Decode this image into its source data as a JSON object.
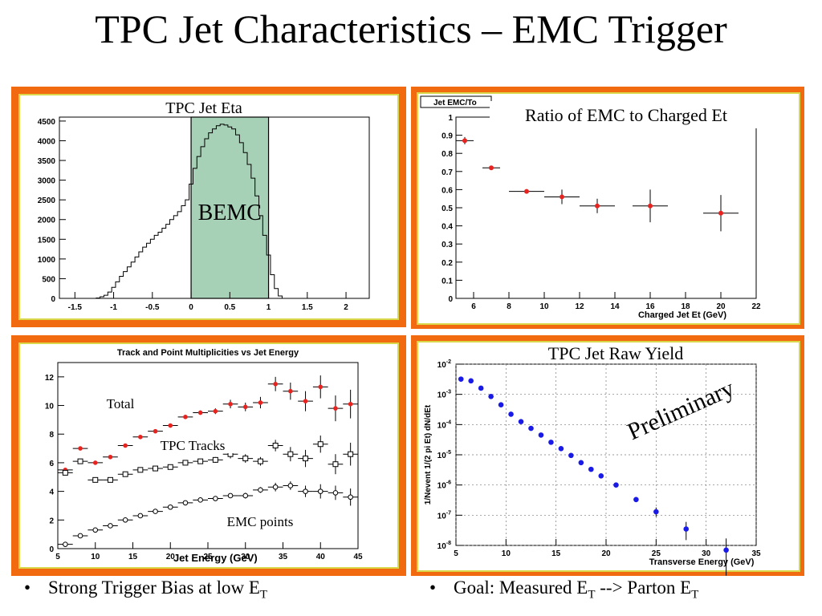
{
  "title": "TPC Jet Characteristics – EMC Trigger",
  "colors": {
    "frame": "#f26a0f",
    "bemc_band": "#a7d1b6",
    "red_points": "#e8231f",
    "blue_points": "#1a1ae6",
    "inner_border": "#d8d84a"
  },
  "bullets": {
    "left": {
      "text": "Strong Trigger Bias at low E",
      "sub": "T"
    },
    "right": {
      "text": "Goal: Measured E",
      "sub1": "T",
      "mid": " --> Parton E",
      "sub2": "T"
    }
  },
  "chart_data": [
    {
      "type": "histogram",
      "title": "TPC Jet Eta",
      "annotation": "BEMC",
      "xlim": [
        -1.7,
        2.3
      ],
      "ylim": [
        0,
        4600
      ],
      "xticks": [
        -1.5,
        -1,
        -0.5,
        0,
        0.5,
        1,
        1.5,
        2
      ],
      "xtick_labels": [
        "-1.5",
        "-1",
        "-0.5",
        "0",
        "0.5",
        "1",
        "1.5",
        "2"
      ],
      "yticks": [
        0,
        500,
        1000,
        1500,
        2000,
        2500,
        3000,
        3500,
        4000,
        4500
      ],
      "band": [
        0,
        1
      ],
      "x": [
        -1.2,
        -1.15,
        -1.1,
        -1.05,
        -1.0,
        -0.95,
        -0.9,
        -0.85,
        -0.8,
        -0.75,
        -0.7,
        -0.65,
        -0.6,
        -0.55,
        -0.5,
        -0.45,
        -0.4,
        -0.35,
        -0.3,
        -0.25,
        -0.2,
        -0.15,
        -0.1,
        -0.05,
        0.0,
        0.05,
        0.1,
        0.15,
        0.2,
        0.25,
        0.3,
        0.35,
        0.4,
        0.45,
        0.5,
        0.55,
        0.6,
        0.65,
        0.7,
        0.75,
        0.8,
        0.85,
        0.9,
        0.95,
        1.0,
        1.05,
        1.1,
        1.15,
        1.2
      ],
      "values": [
        10,
        40,
        80,
        160,
        280,
        420,
        560,
        680,
        800,
        920,
        1050,
        1180,
        1300,
        1400,
        1500,
        1600,
        1680,
        1780,
        1880,
        2000,
        2100,
        2200,
        2350,
        2500,
        2900,
        3300,
        3600,
        3850,
        4050,
        4200,
        4300,
        4380,
        4420,
        4400,
        4350,
        4300,
        4150,
        3950,
        3700,
        3400,
        3050,
        2600,
        2100,
        1600,
        1100,
        600,
        250,
        60,
        0
      ]
    },
    {
      "type": "scatter",
      "title": "Ratio of EMC to Charged Et",
      "legend_label": "Jet EMC/To",
      "xlabel": "Charged Jet Et (GeV)",
      "xlim": [
        5,
        22
      ],
      "ylim": [
        0,
        1
      ],
      "xticks": [
        6,
        8,
        10,
        12,
        14,
        16,
        18,
        20,
        22
      ],
      "yticks": [
        0,
        0.1,
        0.2,
        0.3,
        0.4,
        0.5,
        0.6,
        0.7,
        0.8,
        0.9,
        1
      ],
      "ytick_labels": [
        "0",
        "0.1",
        "0.2",
        "0.3",
        "0.4",
        "0.5",
        "0.6",
        "0.7",
        "0.8",
        "0.9",
        "1"
      ],
      "x": [
        5.5,
        7,
        9,
        11,
        13,
        16,
        20
      ],
      "y": [
        0.87,
        0.72,
        0.59,
        0.56,
        0.51,
        0.51,
        0.47
      ],
      "yerr": [
        0.02,
        0.01,
        0.01,
        0.04,
        0.04,
        0.09,
        0.1
      ],
      "xerr": [
        0.5,
        0.5,
        1,
        1,
        1,
        1,
        1
      ]
    },
    {
      "type": "scatter",
      "title": "Track and Point Multiplicities vs Jet Energy",
      "xlabel": "Jet Energy (GeV)",
      "xlim": [
        5,
        45
      ],
      "ylim": [
        0,
        13
      ],
      "xticks": [
        5,
        10,
        15,
        20,
        25,
        30,
        35,
        40,
        45
      ],
      "yticks": [
        0,
        2,
        4,
        6,
        8,
        10,
        12
      ],
      "labels": {
        "total": "Total",
        "tpc": "TPC Tracks",
        "emc": "EMC points"
      },
      "series": [
        {
          "name": "Total",
          "marker": "filled-red",
          "x": [
            6,
            8,
            10,
            12,
            14,
            16,
            18,
            20,
            22,
            24,
            26,
            28,
            30,
            32,
            34,
            36,
            38,
            40,
            42,
            44
          ],
          "y": [
            5.5,
            7.0,
            6.0,
            6.4,
            7.2,
            7.8,
            8.2,
            8.6,
            9.2,
            9.5,
            9.6,
            10.1,
            9.9,
            10.2,
            11.5,
            11.0,
            10.3,
            11.3,
            9.8,
            10.1
          ],
          "yerr": [
            0.1,
            0.1,
            0.1,
            0.1,
            0.1,
            0.1,
            0.1,
            0.1,
            0.15,
            0.15,
            0.2,
            0.3,
            0.3,
            0.4,
            0.5,
            0.6,
            0.7,
            0.8,
            0.9,
            1.0
          ]
        },
        {
          "name": "TPC Tracks",
          "marker": "open-square",
          "x": [
            6,
            8,
            10,
            12,
            14,
            16,
            18,
            20,
            22,
            24,
            26,
            28,
            30,
            32,
            34,
            36,
            38,
            40,
            42,
            44
          ],
          "y": [
            5.3,
            6.1,
            4.8,
            4.8,
            5.2,
            5.5,
            5.6,
            5.7,
            6.0,
            6.1,
            6.2,
            6.6,
            6.3,
            6.1,
            7.2,
            6.6,
            6.3,
            7.3,
            5.9,
            6.6
          ],
          "yerr": [
            0.1,
            0.1,
            0.1,
            0.1,
            0.1,
            0.1,
            0.1,
            0.1,
            0.1,
            0.15,
            0.2,
            0.3,
            0.3,
            0.3,
            0.4,
            0.5,
            0.6,
            0.6,
            0.7,
            0.8
          ]
        },
        {
          "name": "EMC points",
          "marker": "open-circle",
          "x": [
            6,
            8,
            10,
            12,
            14,
            16,
            18,
            20,
            22,
            24,
            26,
            28,
            30,
            32,
            34,
            36,
            38,
            40,
            42,
            44
          ],
          "y": [
            0.3,
            0.9,
            1.3,
            1.6,
            2.0,
            2.3,
            2.6,
            2.9,
            3.2,
            3.4,
            3.5,
            3.7,
            3.7,
            4.1,
            4.3,
            4.4,
            4.0,
            4.0,
            3.9,
            3.6
          ],
          "yerr": [
            0.05,
            0.05,
            0.05,
            0.05,
            0.05,
            0.05,
            0.05,
            0.1,
            0.1,
            0.1,
            0.1,
            0.15,
            0.2,
            0.2,
            0.3,
            0.3,
            0.4,
            0.5,
            0.5,
            0.6
          ]
        }
      ]
    },
    {
      "type": "scatter",
      "title": "TPC Jet Raw Yield",
      "annotation": "Preliminary",
      "xlabel": "Transverse Energy (GeV)",
      "ylabel": "1/Nevent 1/(2 pi Et) dN/dEt",
      "yscale": "log",
      "xlim": [
        5,
        35
      ],
      "ylim": [
        1e-08,
        0.01
      ],
      "xticks": [
        5,
        10,
        15,
        20,
        25,
        30,
        35
      ],
      "yticks": [
        1e-08,
        1e-07,
        1e-06,
        1e-05,
        0.0001,
        0.001,
        0.01
      ],
      "ytick_exp": [
        "-8",
        "-7",
        "-6",
        "-5",
        "-4",
        "-3",
        "-2"
      ],
      "x": [
        5.5,
        6.5,
        7.5,
        8.5,
        9.5,
        10.5,
        11.5,
        12.5,
        13.5,
        14.5,
        15.5,
        16.5,
        17.5,
        18.5,
        19.5,
        21,
        23,
        25,
        28,
        32
      ],
      "y": [
        0.0032,
        0.0028,
        0.0016,
        0.00085,
        0.00045,
        0.00022,
        0.000125,
        7.5e-05,
        4.5e-05,
        2.6e-05,
        1.6e-05,
        9.5e-06,
        5.5e-06,
        3.3e-06,
        2e-06,
        1e-06,
        3.3e-07,
        1.3e-07,
        3.5e-08,
        7e-09
      ],
      "ylo": [
        0.0031,
        0.0027,
        0.00155,
        0.00082,
        0.00043,
        0.00021,
        0.00012,
        7.2e-05,
        4.3e-05,
        2.5e-05,
        1.5e-05,
        9e-06,
        5.2e-06,
        3.1e-06,
        1.85e-06,
        8.8e-07,
        2.7e-07,
        9e-08,
        1.5e-08,
        1e-09
      ],
      "yhi": [
        0.0033,
        0.0029,
        0.00165,
        0.00088,
        0.00047,
        0.00023,
        0.00013,
        7.8e-05,
        4.7e-05,
        2.7e-05,
        1.7e-05,
        1e-05,
        5.8e-06,
        3.5e-06,
        2.15e-06,
        1.1e-06,
        4e-07,
        1.8e-07,
        6e-08,
        1.7e-08
      ]
    }
  ]
}
